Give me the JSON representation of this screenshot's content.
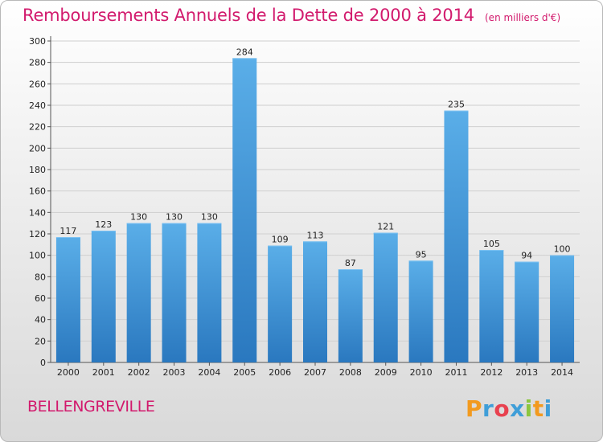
{
  "header": {
    "title": "Remboursements Annuels de la Dette de 2000 à 2014",
    "unit": "(en milliers d'€)"
  },
  "footer": {
    "commune": "BELLENGREVILLE",
    "logo_text": "Proxiti"
  },
  "colors": {
    "accent": "#d21a6d",
    "bar_top": "#5aaee8",
    "bar_bottom": "#2a78bf",
    "grid": "#cfcfcf"
  },
  "chart_data": {
    "type": "bar",
    "title": "Remboursements Annuels de la Dette de 2000 à 2014",
    "subtitle": "(en milliers d'€)",
    "categories": [
      "2000",
      "2001",
      "2002",
      "2003",
      "2004",
      "2005",
      "2006",
      "2007",
      "2008",
      "2009",
      "2010",
      "2011",
      "2012",
      "2013",
      "2014"
    ],
    "values": [
      117,
      123,
      130,
      130,
      130,
      284,
      109,
      113,
      87,
      121,
      95,
      235,
      105,
      94,
      100
    ],
    "ylim": [
      0,
      300
    ],
    "yticks": [
      0,
      20,
      40,
      60,
      80,
      100,
      120,
      140,
      160,
      180,
      200,
      220,
      240,
      260,
      280,
      300
    ],
    "grid": true,
    "xlabel": "",
    "ylabel": ""
  }
}
